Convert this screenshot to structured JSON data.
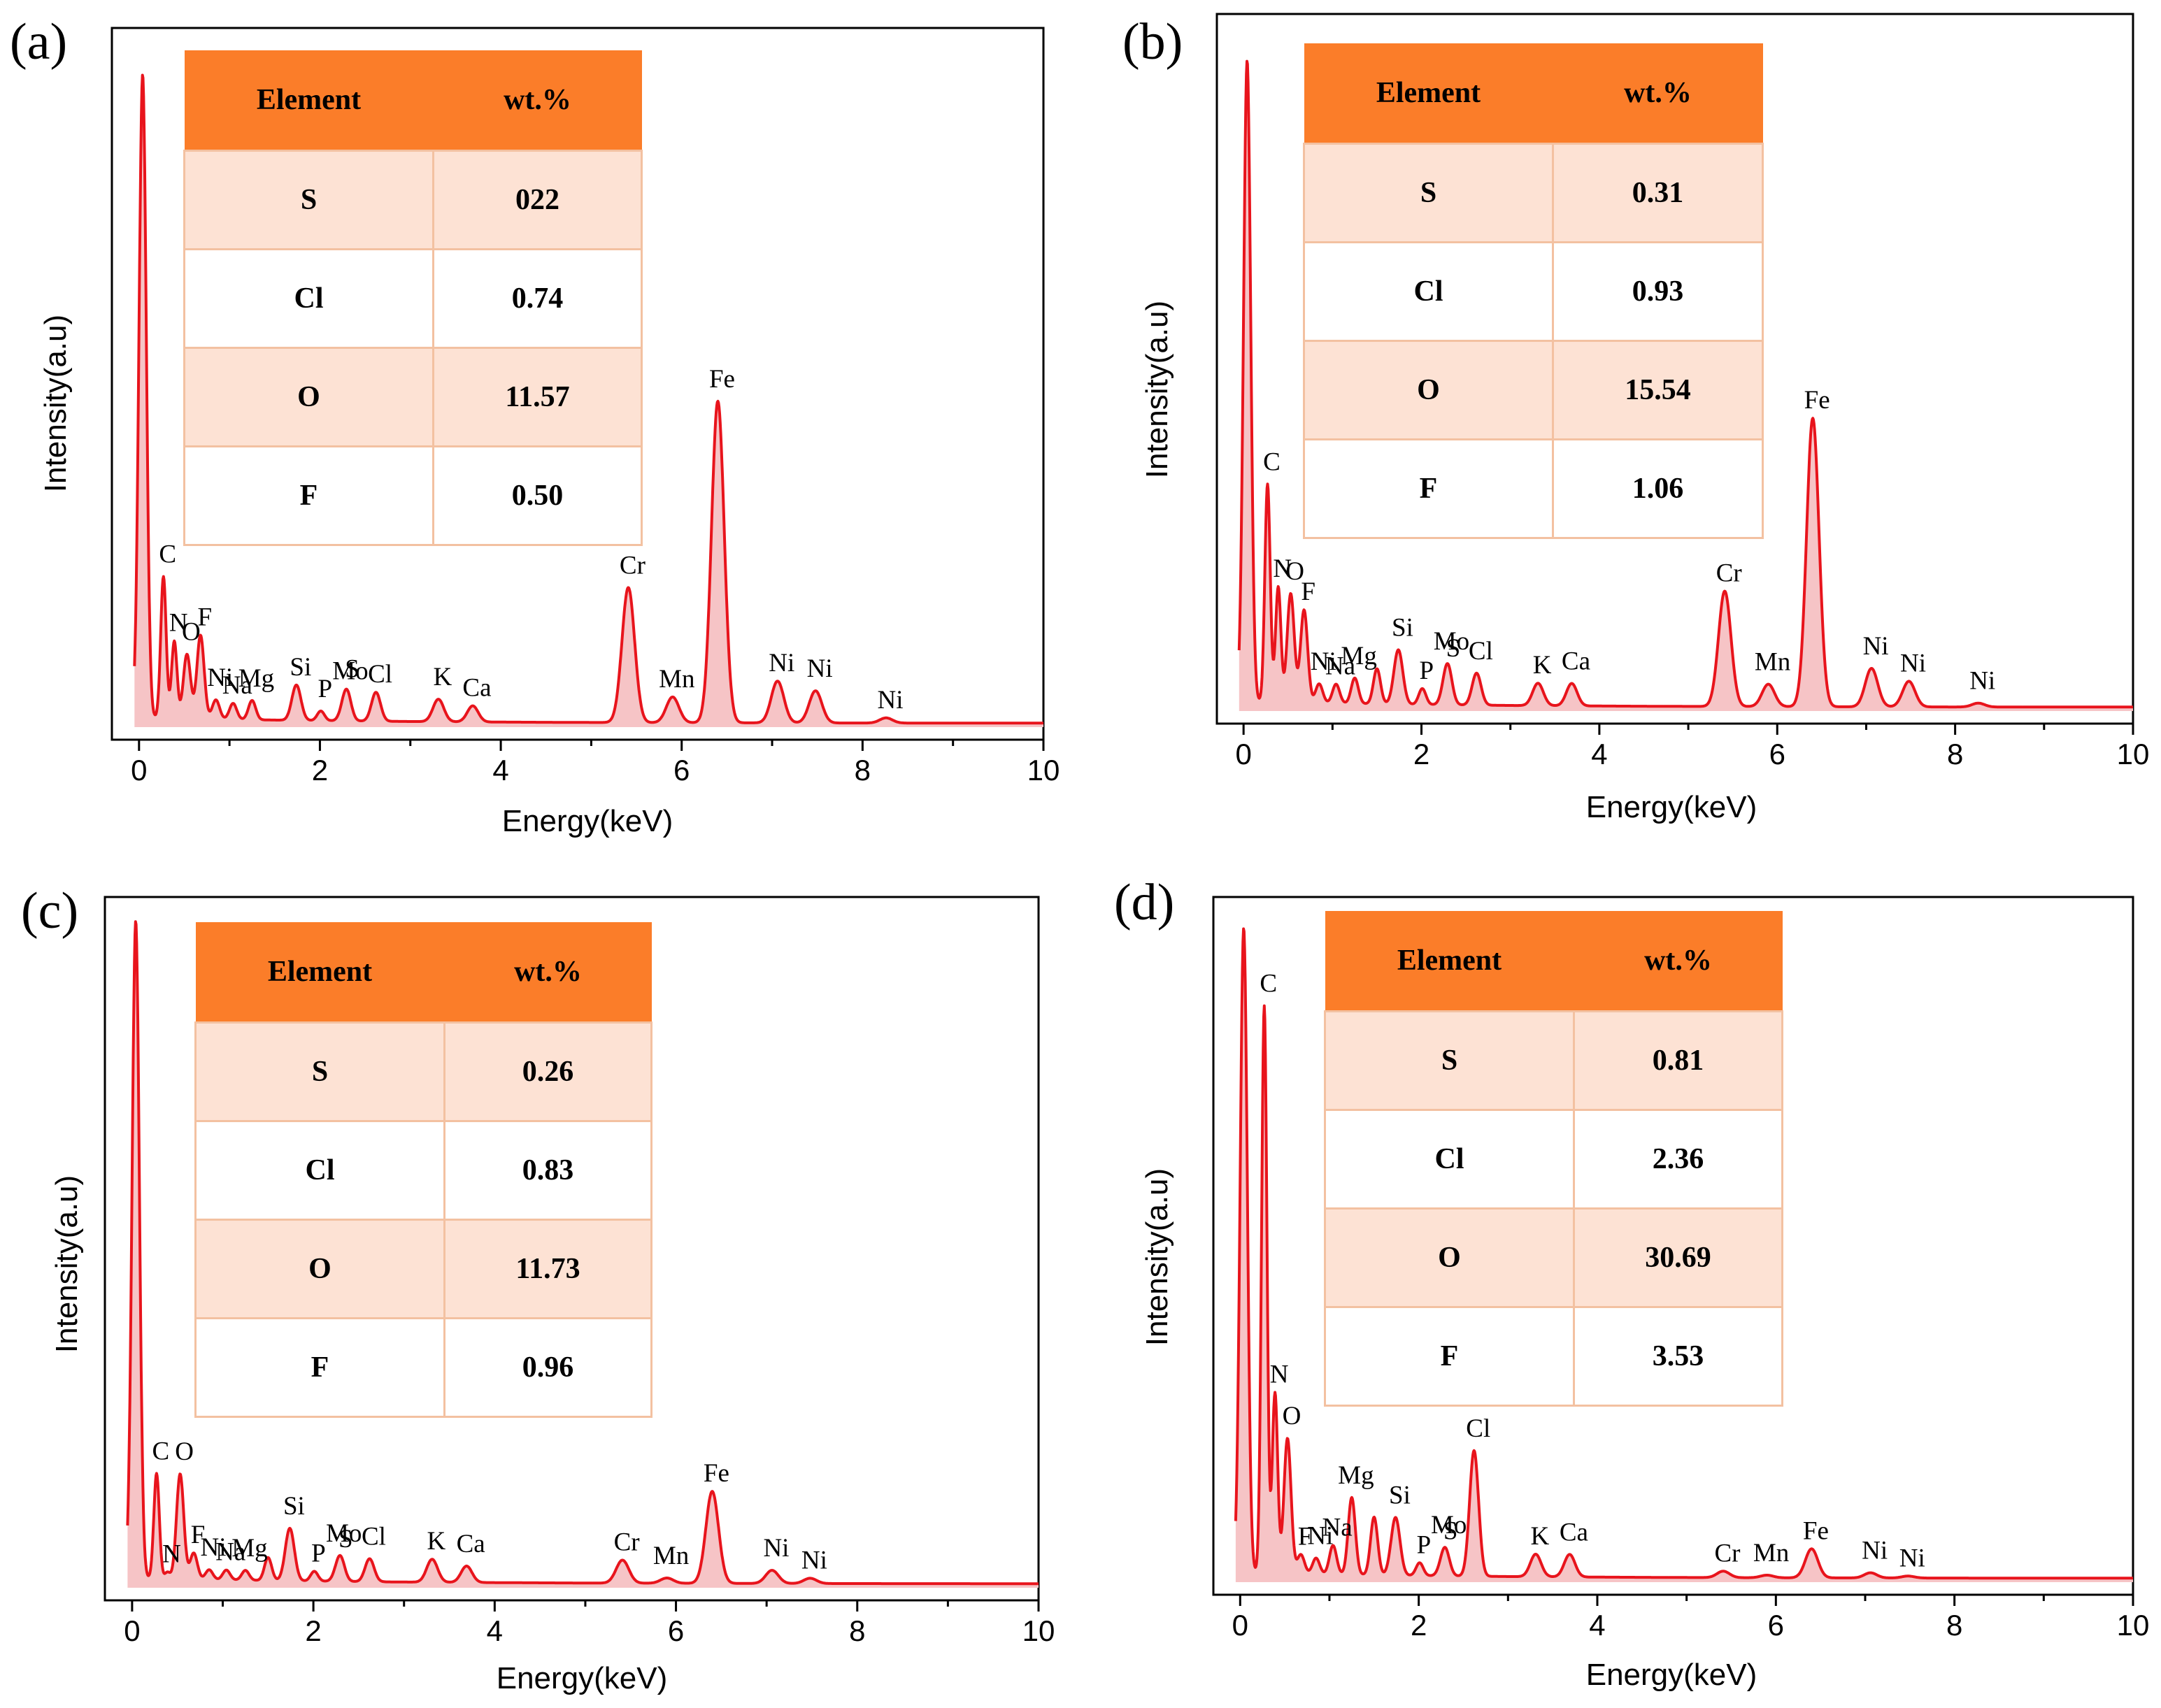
{
  "chart_data": [
    {
      "type": "line",
      "panel_label": "(a)",
      "xlabel": "Energy(keV)",
      "ylabel": "Intensity(a.u)",
      "xlim": [
        -0.3,
        10
      ],
      "ylim": [
        0,
        100
      ],
      "xticks": [
        0,
        2,
        4,
        6,
        8,
        10
      ],
      "color": "#e8141c",
      "fill": "#f6c4c6",
      "peaks": [
        {
          "x": 0.04,
          "y": 100,
          "w": 0.04,
          "label": ""
        },
        {
          "x": 0.27,
          "y": 22,
          "w": 0.03,
          "label": "C"
        },
        {
          "x": 0.39,
          "y": 12,
          "w": 0.03,
          "label": "N"
        },
        {
          "x": 0.53,
          "y": 10,
          "w": 0.04,
          "label": "O"
        },
        {
          "x": 0.68,
          "y": 13,
          "w": 0.04,
          "label": "F"
        },
        {
          "x": 0.85,
          "y": 3,
          "w": 0.04,
          "label": "Ni"
        },
        {
          "x": 1.04,
          "y": 2.5,
          "w": 0.04,
          "label": "Na"
        },
        {
          "x": 1.25,
          "y": 3,
          "w": 0.04,
          "label": "Mg"
        },
        {
          "x": 1.74,
          "y": 5.5,
          "w": 0.05,
          "label": "Si"
        },
        {
          "x": 2.01,
          "y": 1.5,
          "w": 0.04,
          "label": "P"
        },
        {
          "x": 2.29,
          "y": 4.5,
          "w": 0.05,
          "label": "Mo"
        },
        {
          "x": 2.31,
          "y": 0.5,
          "w": 0.04,
          "label": "S"
        },
        {
          "x": 2.62,
          "y": 4.5,
          "w": 0.05,
          "label": "Cl"
        },
        {
          "x": 3.31,
          "y": 3.5,
          "w": 0.06,
          "label": "K"
        },
        {
          "x": 3.69,
          "y": 2.5,
          "w": 0.06,
          "label": "Ca"
        },
        {
          "x": 5.41,
          "y": 21,
          "w": 0.07,
          "label": "Cr"
        },
        {
          "x": 5.9,
          "y": 4,
          "w": 0.07,
          "label": "Mn"
        },
        {
          "x": 6.4,
          "y": 50,
          "w": 0.07,
          "label": "Fe"
        },
        {
          "x": 7.06,
          "y": 6.5,
          "w": 0.07,
          "label": "Ni"
        },
        {
          "x": 7.48,
          "y": 5,
          "w": 0.07,
          "label": "Ni"
        },
        {
          "x": 8.26,
          "y": 0.8,
          "w": 0.07,
          "label": "Ni"
        }
      ],
      "table": {
        "header": [
          "Element",
          "wt.%"
        ],
        "rows": [
          [
            "S",
            "022"
          ],
          [
            "Cl",
            "0.74"
          ],
          [
            "O",
            "11.57"
          ],
          [
            "F",
            "0.50"
          ]
        ]
      }
    },
    {
      "type": "line",
      "panel_label": "(b)",
      "xlabel": "Energy(keV)",
      "ylabel": "Intensity(a.u)",
      "xlim": [
        -0.3,
        10
      ],
      "ylim": [
        0,
        100
      ],
      "xticks": [
        0,
        2,
        4,
        6,
        8,
        10
      ],
      "color": "#e8141c",
      "fill": "#f6c4c6",
      "peaks": [
        {
          "x": 0.04,
          "y": 100,
          "w": 0.04,
          "label": ""
        },
        {
          "x": 0.27,
          "y": 34,
          "w": 0.03,
          "label": "C"
        },
        {
          "x": 0.39,
          "y": 18,
          "w": 0.03,
          "label": "N"
        },
        {
          "x": 0.53,
          "y": 17,
          "w": 0.04,
          "label": "O"
        },
        {
          "x": 0.68,
          "y": 14.5,
          "w": 0.04,
          "label": "F"
        },
        {
          "x": 0.85,
          "y": 3,
          "w": 0.04,
          "label": "Ni"
        },
        {
          "x": 1.04,
          "y": 3,
          "w": 0.04,
          "label": "Na"
        },
        {
          "x": 1.25,
          "y": 4,
          "w": 0.04,
          "label": "Mg"
        },
        {
          "x": 1.5,
          "y": 5.5,
          "w": 0.04,
          "label": ""
        },
        {
          "x": 1.74,
          "y": 8.5,
          "w": 0.05,
          "label": "Si"
        },
        {
          "x": 2.01,
          "y": 2.5,
          "w": 0.04,
          "label": "P"
        },
        {
          "x": 2.29,
          "y": 6,
          "w": 0.05,
          "label": "Mo"
        },
        {
          "x": 2.31,
          "y": 0.5,
          "w": 0.04,
          "label": "S"
        },
        {
          "x": 2.62,
          "y": 5,
          "w": 0.05,
          "label": "Cl"
        },
        {
          "x": 3.31,
          "y": 3.5,
          "w": 0.06,
          "label": "K"
        },
        {
          "x": 3.69,
          "y": 3.5,
          "w": 0.06,
          "label": "Ca"
        },
        {
          "x": 5.41,
          "y": 18,
          "w": 0.07,
          "label": "Cr"
        },
        {
          "x": 5.9,
          "y": 3.5,
          "w": 0.07,
          "label": "Mn"
        },
        {
          "x": 6.4,
          "y": 45,
          "w": 0.07,
          "label": "Fe"
        },
        {
          "x": 7.06,
          "y": 6,
          "w": 0.07,
          "label": "Ni"
        },
        {
          "x": 7.48,
          "y": 4,
          "w": 0.07,
          "label": "Ni"
        },
        {
          "x": 8.26,
          "y": 0.6,
          "w": 0.07,
          "label": "Ni"
        }
      ],
      "table": {
        "header": [
          "Element",
          "wt.%"
        ],
        "rows": [
          [
            "S",
            "0.31"
          ],
          [
            "Cl",
            "0.93"
          ],
          [
            "O",
            "15.54"
          ],
          [
            "F",
            "1.06"
          ]
        ]
      }
    },
    {
      "type": "line",
      "panel_label": "(c)",
      "xlabel": "Energy(keV)",
      "ylabel": "Intensity(a.u)",
      "xlim": [
        -0.3,
        10
      ],
      "ylim": [
        0,
        100
      ],
      "xticks": [
        0,
        2,
        4,
        6,
        8,
        10
      ],
      "color": "#e8141c",
      "fill": "#f6c4c6",
      "peaks": [
        {
          "x": 0.04,
          "y": 100,
          "w": 0.04,
          "label": ""
        },
        {
          "x": 0.27,
          "y": 16,
          "w": 0.03,
          "label": "C"
        },
        {
          "x": 0.39,
          "y": 1,
          "w": 0.03,
          "label": "N"
        },
        {
          "x": 0.53,
          "y": 16,
          "w": 0.04,
          "label": "O"
        },
        {
          "x": 0.68,
          "y": 4,
          "w": 0.04,
          "label": "F"
        },
        {
          "x": 0.85,
          "y": 1.5,
          "w": 0.04,
          "label": "Ni"
        },
        {
          "x": 1.04,
          "y": 1.5,
          "w": 0.04,
          "label": "Na"
        },
        {
          "x": 1.25,
          "y": 1.5,
          "w": 0.04,
          "label": "Mg"
        },
        {
          "x": 1.5,
          "y": 3.5,
          "w": 0.04,
          "label": ""
        },
        {
          "x": 1.74,
          "y": 8,
          "w": 0.05,
          "label": "Si"
        },
        {
          "x": 2.01,
          "y": 1.5,
          "w": 0.04,
          "label": "P"
        },
        {
          "x": 2.29,
          "y": 3.5,
          "w": 0.05,
          "label": "Mo"
        },
        {
          "x": 2.31,
          "y": 0.5,
          "w": 0.04,
          "label": "S"
        },
        {
          "x": 2.62,
          "y": 3.5,
          "w": 0.05,
          "label": "Cl"
        },
        {
          "x": 3.31,
          "y": 3.5,
          "w": 0.06,
          "label": "K"
        },
        {
          "x": 3.69,
          "y": 2.5,
          "w": 0.06,
          "label": "Ca"
        },
        {
          "x": 5.41,
          "y": 3.5,
          "w": 0.07,
          "label": "Cr"
        },
        {
          "x": 5.9,
          "y": 0.8,
          "w": 0.07,
          "label": "Mn"
        },
        {
          "x": 6.4,
          "y": 14,
          "w": 0.07,
          "label": "Fe"
        },
        {
          "x": 7.06,
          "y": 2,
          "w": 0.07,
          "label": "Ni"
        },
        {
          "x": 7.48,
          "y": 0.8,
          "w": 0.07,
          "label": "Ni"
        }
      ],
      "table": {
        "header": [
          "Element",
          "wt.%"
        ],
        "rows": [
          [
            "S",
            "0.26"
          ],
          [
            "Cl",
            "0.83"
          ],
          [
            "O",
            "11.73"
          ],
          [
            "F",
            "0.96"
          ]
        ]
      }
    },
    {
      "type": "line",
      "panel_label": "(d)",
      "xlabel": "Energy(keV)",
      "ylabel": "Intensity(a.u)",
      "xlim": [
        -0.3,
        10
      ],
      "ylim": [
        0,
        100
      ],
      "xticks": [
        0,
        2,
        4,
        6,
        8,
        10
      ],
      "color": "#e8141c",
      "fill": "#f6c4c6",
      "peaks": [
        {
          "x": 0.04,
          "y": 100,
          "w": 0.04,
          "label": ""
        },
        {
          "x": 0.27,
          "y": 88,
          "w": 0.03,
          "label": "C"
        },
        {
          "x": 0.39,
          "y": 28,
          "w": 0.03,
          "label": "N"
        },
        {
          "x": 0.53,
          "y": 21,
          "w": 0.04,
          "label": "O"
        },
        {
          "x": 0.68,
          "y": 3,
          "w": 0.04,
          "label": "F"
        },
        {
          "x": 0.85,
          "y": 2.5,
          "w": 0.04,
          "label": "Ni"
        },
        {
          "x": 1.04,
          "y": 4.5,
          "w": 0.04,
          "label": "Na"
        },
        {
          "x": 1.25,
          "y": 12,
          "w": 0.04,
          "label": "Mg"
        },
        {
          "x": 1.5,
          "y": 9,
          "w": 0.04,
          "label": ""
        },
        {
          "x": 1.74,
          "y": 9,
          "w": 0.05,
          "label": "Si"
        },
        {
          "x": 2.01,
          "y": 2,
          "w": 0.04,
          "label": "P"
        },
        {
          "x": 2.29,
          "y": 4,
          "w": 0.05,
          "label": "Mo"
        },
        {
          "x": 2.31,
          "y": 0.5,
          "w": 0.04,
          "label": "S"
        },
        {
          "x": 2.62,
          "y": 19.5,
          "w": 0.05,
          "label": "Cl"
        },
        {
          "x": 3.31,
          "y": 3.5,
          "w": 0.06,
          "label": "K"
        },
        {
          "x": 3.69,
          "y": 3.5,
          "w": 0.06,
          "label": "Ca"
        },
        {
          "x": 5.41,
          "y": 1,
          "w": 0.07,
          "label": "Cr"
        },
        {
          "x": 5.9,
          "y": 0.4,
          "w": 0.07,
          "label": "Mn"
        },
        {
          "x": 6.4,
          "y": 4.5,
          "w": 0.07,
          "label": "Fe"
        },
        {
          "x": 7.06,
          "y": 0.8,
          "w": 0.07,
          "label": "Ni"
        },
        {
          "x": 7.48,
          "y": 0.3,
          "w": 0.07,
          "label": "Ni"
        }
      ],
      "table": {
        "header": [
          "Element",
          "wt.%"
        ],
        "rows": [
          [
            "S",
            "0.81"
          ],
          [
            "Cl",
            "2.36"
          ],
          [
            "O",
            "30.69"
          ],
          [
            "F",
            "3.53"
          ]
        ]
      }
    }
  ]
}
